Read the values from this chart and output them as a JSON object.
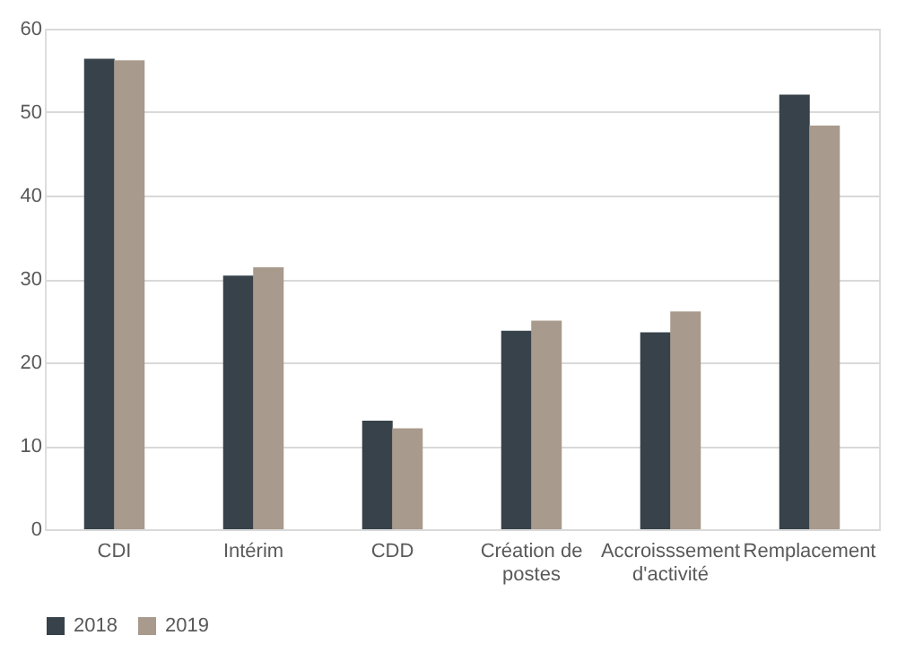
{
  "chart_data": {
    "type": "bar",
    "categories": [
      "CDI",
      "Intérim",
      "CDD",
      "Création de postes",
      "Accroisssement d'activité",
      "Remplacement"
    ],
    "series": [
      {
        "name": "2018",
        "color": "#37424a",
        "values": [
          56.4,
          30.4,
          13.0,
          23.8,
          23.6,
          52.1
        ]
      },
      {
        "name": "2019",
        "color": "#a89a8c",
        "values": [
          56.2,
          31.4,
          12.1,
          25.0,
          26.1,
          48.4
        ]
      }
    ],
    "ylim": [
      0,
      60
    ],
    "yticks": [
      0,
      10,
      20,
      30,
      40,
      50,
      60
    ],
    "grid": "y",
    "legend": "bottom"
  }
}
